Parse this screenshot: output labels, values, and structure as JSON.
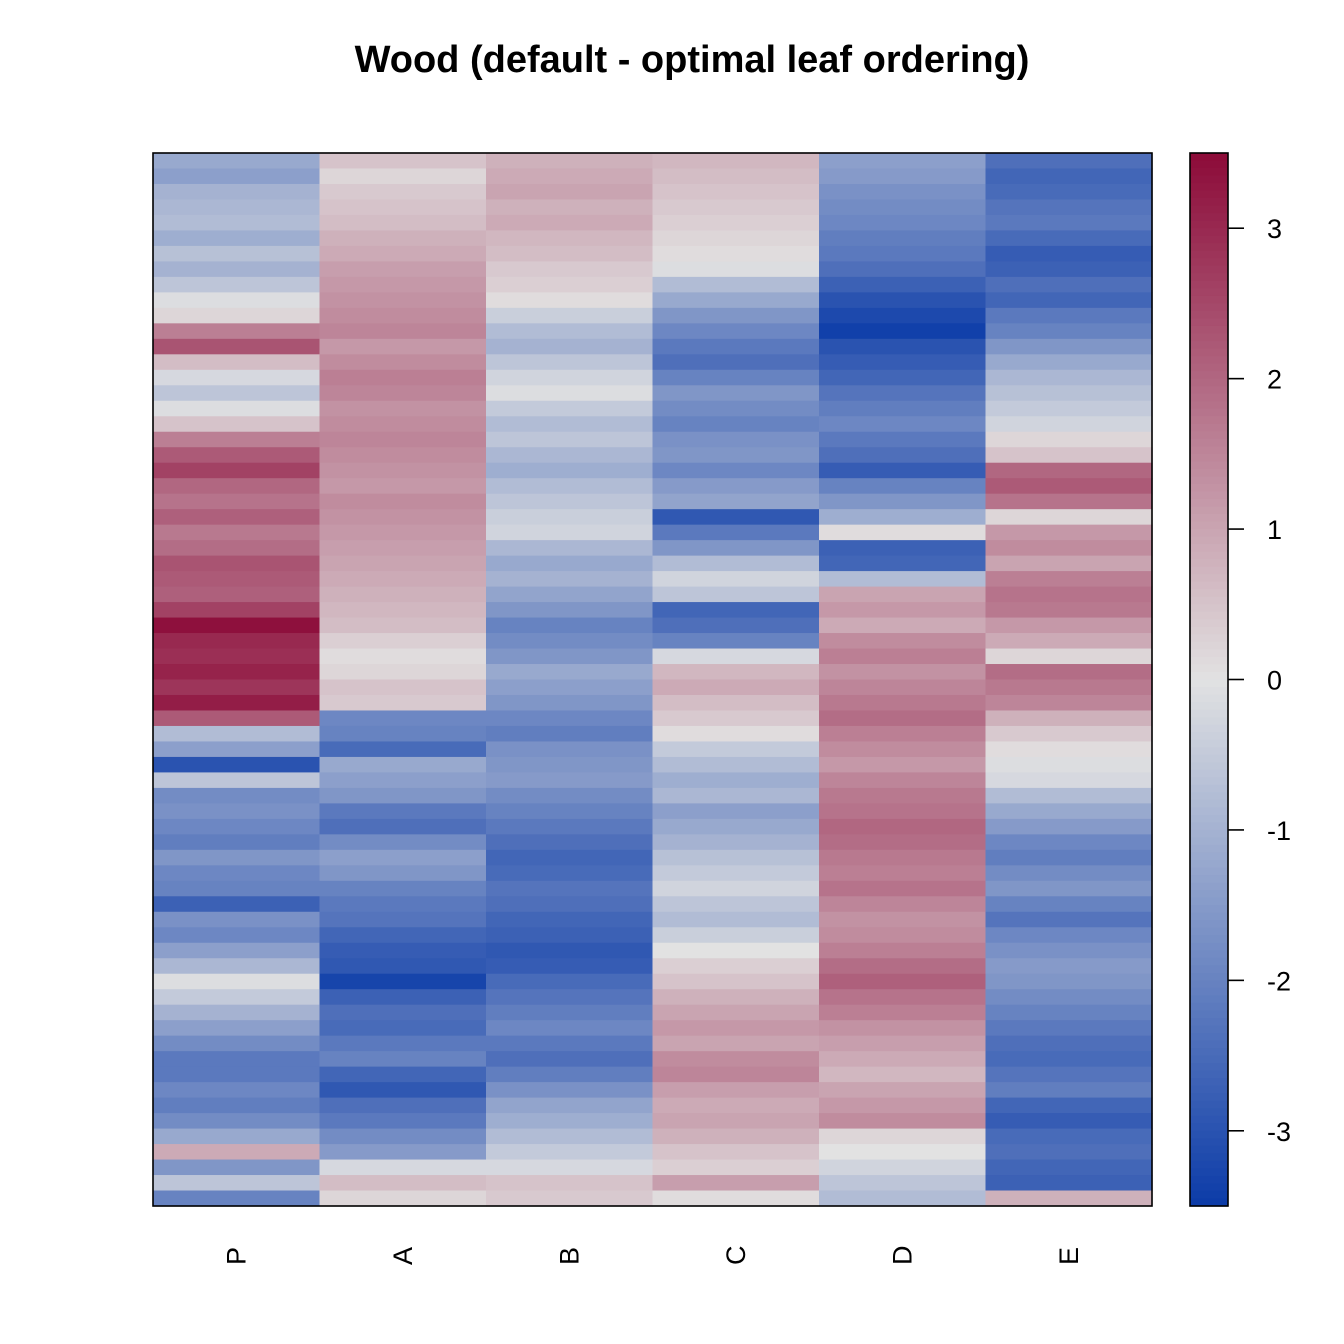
{
  "chart_data": {
    "type": "heatmap",
    "title": "Wood (default - optimal leaf ordering)",
    "columns": [
      "P",
      "A",
      "B",
      "C",
      "D",
      "E"
    ],
    "n_rows": 68,
    "colorbar": {
      "min": -3.5,
      "max": 3.5,
      "ticks": [
        3,
        2,
        1,
        0,
        -1,
        -2,
        -3
      ],
      "tick_labels": [
        "3",
        "2",
        "1",
        "0",
        "-1",
        "-2",
        "-3"
      ],
      "low_color": "#0b3ba8",
      "mid_color": "#e2e2e2",
      "high_color": "#8c0a38"
    },
    "values": {
      "P": [
        -1.2,
        -1.4,
        -1.0,
        -0.9,
        -0.8,
        -1.1,
        -0.7,
        -1.0,
        -0.6,
        -0.1,
        0.2,
        1.6,
        2.3,
        0.6,
        -0.2,
        -0.6,
        -0.1,
        0.5,
        1.6,
        2.2,
        2.6,
        2.0,
        1.8,
        2.1,
        1.7,
        1.9,
        2.3,
        2.2,
        2.1,
        2.6,
        3.4,
        3.0,
        2.9,
        3.1,
        2.8,
        3.2,
        2.2,
        -0.8,
        -1.4,
        -3.0,
        -0.6,
        -1.8,
        -1.7,
        -1.9,
        -2.1,
        -1.6,
        -1.9,
        -2.0,
        -2.7,
        -1.7,
        -1.9,
        -1.4,
        -0.9,
        -0.1,
        -0.5,
        -1.0,
        -1.4,
        -1.8,
        -2.2,
        -2.2,
        -1.9,
        -2.1,
        -1.8,
        -1.2,
        0.9,
        -1.6,
        -0.6,
        -2.0
      ],
      "A": [
        0.5,
        0.2,
        0.4,
        0.5,
        0.6,
        0.8,
        0.9,
        1.1,
        1.2,
        1.3,
        1.4,
        1.5,
        1.2,
        1.4,
        1.6,
        1.5,
        1.3,
        1.4,
        1.5,
        1.4,
        1.3,
        1.2,
        1.4,
        1.3,
        1.2,
        1.1,
        1.0,
        0.9,
        0.8,
        0.7,
        0.6,
        0.3,
        0.1,
        0.2,
        0.5,
        0.4,
        -1.9,
        -2.0,
        -2.5,
        -1.2,
        -1.4,
        -1.6,
        -2.2,
        -2.4,
        -1.8,
        -1.4,
        -1.6,
        -2.0,
        -2.2,
        -2.3,
        -2.6,
        -2.8,
        -2.9,
        -3.3,
        -2.7,
        -2.4,
        -2.5,
        -2.2,
        -2.0,
        -2.6,
        -2.9,
        -2.4,
        -2.2,
        -1.8,
        -1.5,
        -0.2,
        0.6,
        0.2
      ],
      "B": [
        0.8,
        0.9,
        1.0,
        0.8,
        0.9,
        0.7,
        0.6,
        0.4,
        0.3,
        0.1,
        -0.4,
        -0.8,
        -1.0,
        -0.6,
        -0.3,
        -0.1,
        -0.5,
        -0.8,
        -0.6,
        -0.9,
        -1.1,
        -0.8,
        -0.6,
        -0.4,
        -0.3,
        -0.9,
        -1.2,
        -1.0,
        -1.3,
        -1.6,
        -2.0,
        -1.8,
        -1.6,
        -1.2,
        -1.4,
        -1.6,
        -1.9,
        -2.1,
        -1.7,
        -1.6,
        -1.5,
        -1.8,
        -2.0,
        -2.2,
        -2.4,
        -2.6,
        -2.5,
        -2.3,
        -2.4,
        -2.6,
        -2.7,
        -2.9,
        -2.8,
        -2.5,
        -2.3,
        -2.1,
        -1.9,
        -2.2,
        -2.4,
        -2.1,
        -1.7,
        -1.3,
        -1.1,
        -0.8,
        -0.5,
        -0.2,
        0.5,
        0.4
      ],
      "C": [
        0.7,
        0.6,
        0.5,
        0.4,
        0.3,
        0.2,
        0.1,
        -0.1,
        -0.8,
        -1.2,
        -1.6,
        -1.9,
        -2.2,
        -2.4,
        -2.0,
        -1.6,
        -1.8,
        -2.0,
        -1.7,
        -1.6,
        -1.9,
        -1.5,
        -1.3,
        -2.9,
        -2.2,
        -1.6,
        -0.8,
        -0.3,
        -0.6,
        -2.6,
        -2.4,
        -2.0,
        -0.2,
        0.7,
        0.9,
        0.6,
        0.4,
        0.1,
        -0.5,
        -0.8,
        -1.1,
        -0.9,
        -1.4,
        -1.2,
        -1.0,
        -0.7,
        -0.5,
        -0.3,
        -0.6,
        -0.8,
        -0.4,
        0.0,
        0.3,
        0.5,
        0.8,
        1.0,
        1.2,
        1.0,
        1.4,
        1.5,
        1.1,
        0.9,
        1.0,
        0.8,
        0.5,
        0.3,
        1.1,
        0.1
      ],
      "D": [
        -1.4,
        -1.5,
        -1.7,
        -1.8,
        -1.9,
        -2.1,
        -2.2,
        -2.4,
        -2.7,
        -3.0,
        -3.2,
        -3.4,
        -3.0,
        -2.8,
        -2.6,
        -2.3,
        -2.1,
        -1.9,
        -2.2,
        -2.4,
        -2.8,
        -2.0,
        -1.6,
        -1.1,
        0.1,
        -2.7,
        -2.6,
        -0.8,
        1.0,
        1.2,
        0.9,
        1.4,
        1.6,
        1.3,
        1.5,
        1.7,
        1.9,
        1.6,
        1.4,
        1.2,
        1.5,
        1.7,
        1.8,
        2.0,
        1.9,
        1.7,
        1.6,
        1.8,
        1.5,
        1.3,
        1.4,
        1.6,
        1.9,
        2.1,
        1.8,
        1.6,
        1.3,
        1.1,
        0.9,
        0.7,
        1.0,
        1.2,
        1.4,
        0.2,
        0.0,
        -0.3,
        -0.6,
        -0.8
      ],
      "E": [
        -2.4,
        -2.6,
        -2.5,
        -2.3,
        -2.2,
        -2.5,
        -2.8,
        -2.7,
        -2.4,
        -2.6,
        -2.2,
        -2.0,
        -1.6,
        -1.2,
        -0.9,
        -0.7,
        -0.5,
        -0.3,
        0.2,
        0.5,
        2.0,
        2.2,
        1.8,
        0.2,
        1.2,
        1.4,
        1.0,
        1.6,
        1.8,
        1.7,
        1.2,
        0.9,
        0.2,
        1.9,
        1.7,
        1.5,
        0.8,
        0.4,
        0.1,
        -0.1,
        -0.2,
        -0.8,
        -1.2,
        -1.5,
        -1.9,
        -2.1,
        -1.8,
        -1.6,
        -2.0,
        -2.3,
        -1.9,
        -1.7,
        -1.5,
        -1.6,
        -1.8,
        -2.0,
        -2.2,
        -2.4,
        -2.5,
        -2.3,
        -2.1,
        -2.6,
        -2.8,
        -2.5,
        -2.4,
        -2.6,
        -2.7,
        0.8
      ]
    }
  }
}
